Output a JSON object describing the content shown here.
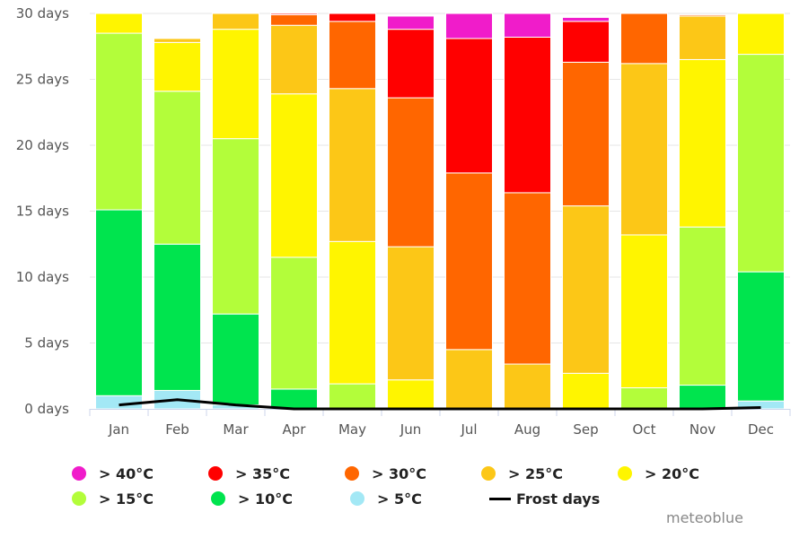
{
  "chart_data": {
    "type": "bar",
    "stacked": true,
    "categories": [
      "Jan",
      "Feb",
      "Mar",
      "Apr",
      "May",
      "Jun",
      "Jul",
      "Aug",
      "Sep",
      "Oct",
      "Nov",
      "Dec"
    ],
    "y_ticks": [
      "0 days",
      "5 days",
      "10 days",
      "15 days",
      "20 days",
      "25 days",
      "30 days"
    ],
    "ylim": [
      0,
      30
    ],
    "grid": true,
    "series": [
      {
        "name": "> 5°C",
        "color": "#a3e8f5",
        "values": [
          1.0,
          1.4,
          0.3,
          0.0,
          0.0,
          0.0,
          0.0,
          0.0,
          0.0,
          0.0,
          0.0,
          0.6
        ]
      },
      {
        "name": "> 10°C",
        "color": "#00e44e",
        "values": [
          14.1,
          11.1,
          6.9,
          1.5,
          0.0,
          0.0,
          0.0,
          0.0,
          0.0,
          0.0,
          1.8,
          9.8
        ]
      },
      {
        "name": "> 15°C",
        "color": "#b3fd3a",
        "values": [
          13.4,
          11.6,
          13.3,
          10.0,
          1.9,
          0.0,
          0.0,
          0.0,
          0.0,
          1.6,
          12.0,
          16.5
        ]
      },
      {
        "name": "> 20°C",
        "color": "#fff500",
        "values": [
          1.5,
          3.7,
          8.3,
          12.4,
          10.8,
          2.2,
          0.0,
          0.0,
          2.7,
          11.6,
          12.7,
          3.1
        ]
      },
      {
        "name": "> 25°C",
        "color": "#fcc717",
        "values": [
          0.0,
          0.3,
          1.2,
          5.2,
          11.6,
          10.1,
          4.5,
          3.4,
          12.7,
          13.0,
          3.3,
          0.0
        ]
      },
      {
        "name": "> 30°C",
        "color": "#ff6600",
        "values": [
          0.0,
          0.0,
          0.0,
          0.8,
          5.1,
          11.3,
          13.4,
          13.0,
          10.9,
          3.8,
          0.1,
          0.0
        ]
      },
      {
        "name": "> 35°C",
        "color": "#ff0000",
        "values": [
          0.0,
          0.0,
          0.0,
          0.1,
          0.6,
          5.2,
          10.2,
          11.8,
          3.1,
          0.0,
          0.0,
          0.0
        ]
      },
      {
        "name": "> 40°C",
        "color": "#f01cca",
        "values": [
          0.0,
          0.0,
          0.0,
          0.0,
          0.0,
          1.0,
          1.9,
          1.8,
          0.3,
          0.0,
          0.0,
          0.0
        ]
      }
    ],
    "line_series": {
      "name": "Frost days",
      "color": "#000000",
      "values": [
        0.3,
        0.7,
        0.3,
        0.0,
        0.0,
        0.0,
        0.0,
        0.0,
        0.0,
        0.0,
        0.0,
        0.1
      ]
    }
  },
  "legend": {
    "rows": [
      [
        {
          "label": "> 40°C",
          "color": "#f01cca",
          "kind": "circle"
        },
        {
          "label": "> 35°C",
          "color": "#ff0000",
          "kind": "circle"
        },
        {
          "label": "> 30°C",
          "color": "#ff6600",
          "kind": "circle"
        },
        {
          "label": "> 25°C",
          "color": "#fcc717",
          "kind": "circle"
        },
        {
          "label": "> 20°C",
          "color": "#fff500",
          "kind": "circle"
        }
      ],
      [
        {
          "label": "> 15°C",
          "color": "#b3fd3a",
          "kind": "circle"
        },
        {
          "label": "> 10°C",
          "color": "#00e44e",
          "kind": "circle"
        },
        {
          "label": "> 5°C",
          "color": "#a3e8f5",
          "kind": "circle"
        },
        {
          "label": "Frost days",
          "color": "#000000",
          "kind": "line"
        }
      ]
    ]
  },
  "credit": "meteoblue"
}
